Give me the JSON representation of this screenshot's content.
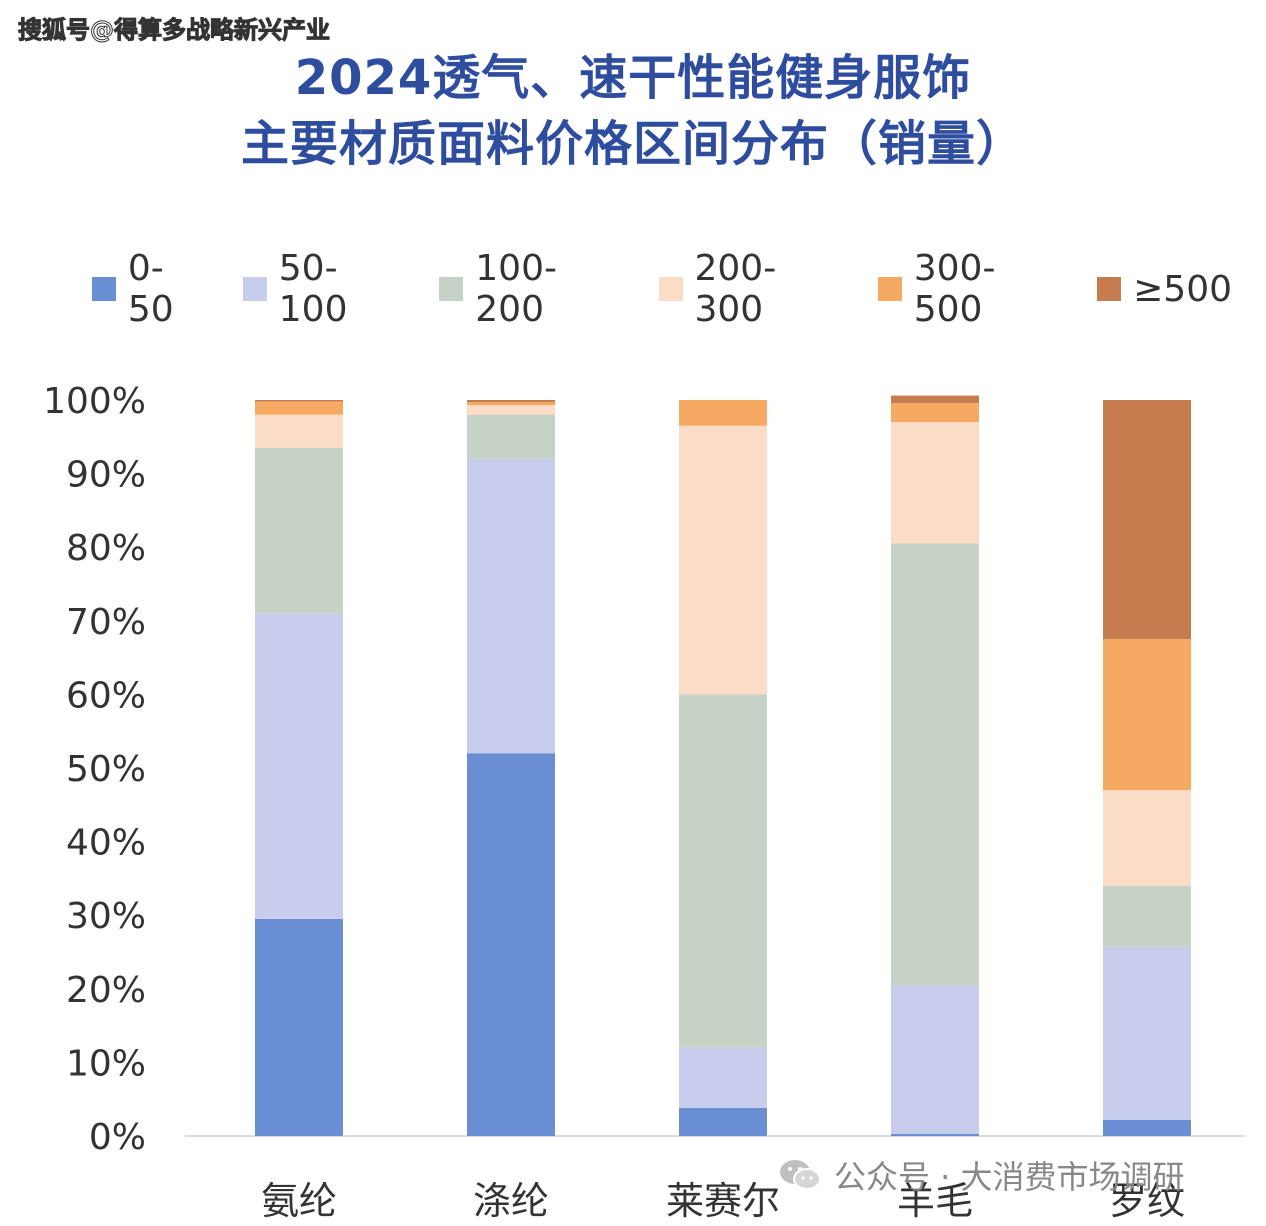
{
  "watermark": "搜狐号@得算多战略新兴产业",
  "title_line1": "2024透气、速干性能健身服饰",
  "title_line2": "主要材质面料价格区间分布（销量）",
  "footer_text": "公众号 · 大消费市场调研",
  "chart_data": {
    "type": "bar",
    "stacked": true,
    "normalized": true,
    "categories": [
      "氨纶",
      "涤纶",
      "莱赛尔",
      "羊毛",
      "罗纹"
    ],
    "series": [
      {
        "name": "0-50",
        "color": "#6a8ed4",
        "values": [
          29.5,
          52,
          3.8,
          0.3,
          2.2
        ]
      },
      {
        "name": "50-100",
        "color": "#c8cdee",
        "values": [
          41.5,
          40,
          8.2,
          20.2,
          23.5
        ]
      },
      {
        "name": "100-200",
        "color": "#c6d2c6",
        "values": [
          22.5,
          6,
          48,
          60,
          8.3
        ]
      },
      {
        "name": "200-300",
        "color": "#fbdcc6",
        "values": [
          4.5,
          1.3,
          36.5,
          16.5,
          13
        ]
      },
      {
        "name": "300-500",
        "color": "#f5a962",
        "values": [
          1.8,
          0.4,
          3.5,
          2.6,
          20.5
        ]
      },
      {
        "name": "≥500",
        "color": "#c57c4f",
        "values": [
          0.2,
          0.3,
          0,
          1,
          32.5
        ]
      }
    ],
    "ylim": [
      0,
      100
    ],
    "yticks": [
      "0%",
      "10%",
      "20%",
      "30%",
      "40%",
      "50%",
      "60%",
      "70%",
      "80%",
      "90%",
      "100%"
    ],
    "legend_position": "top"
  }
}
